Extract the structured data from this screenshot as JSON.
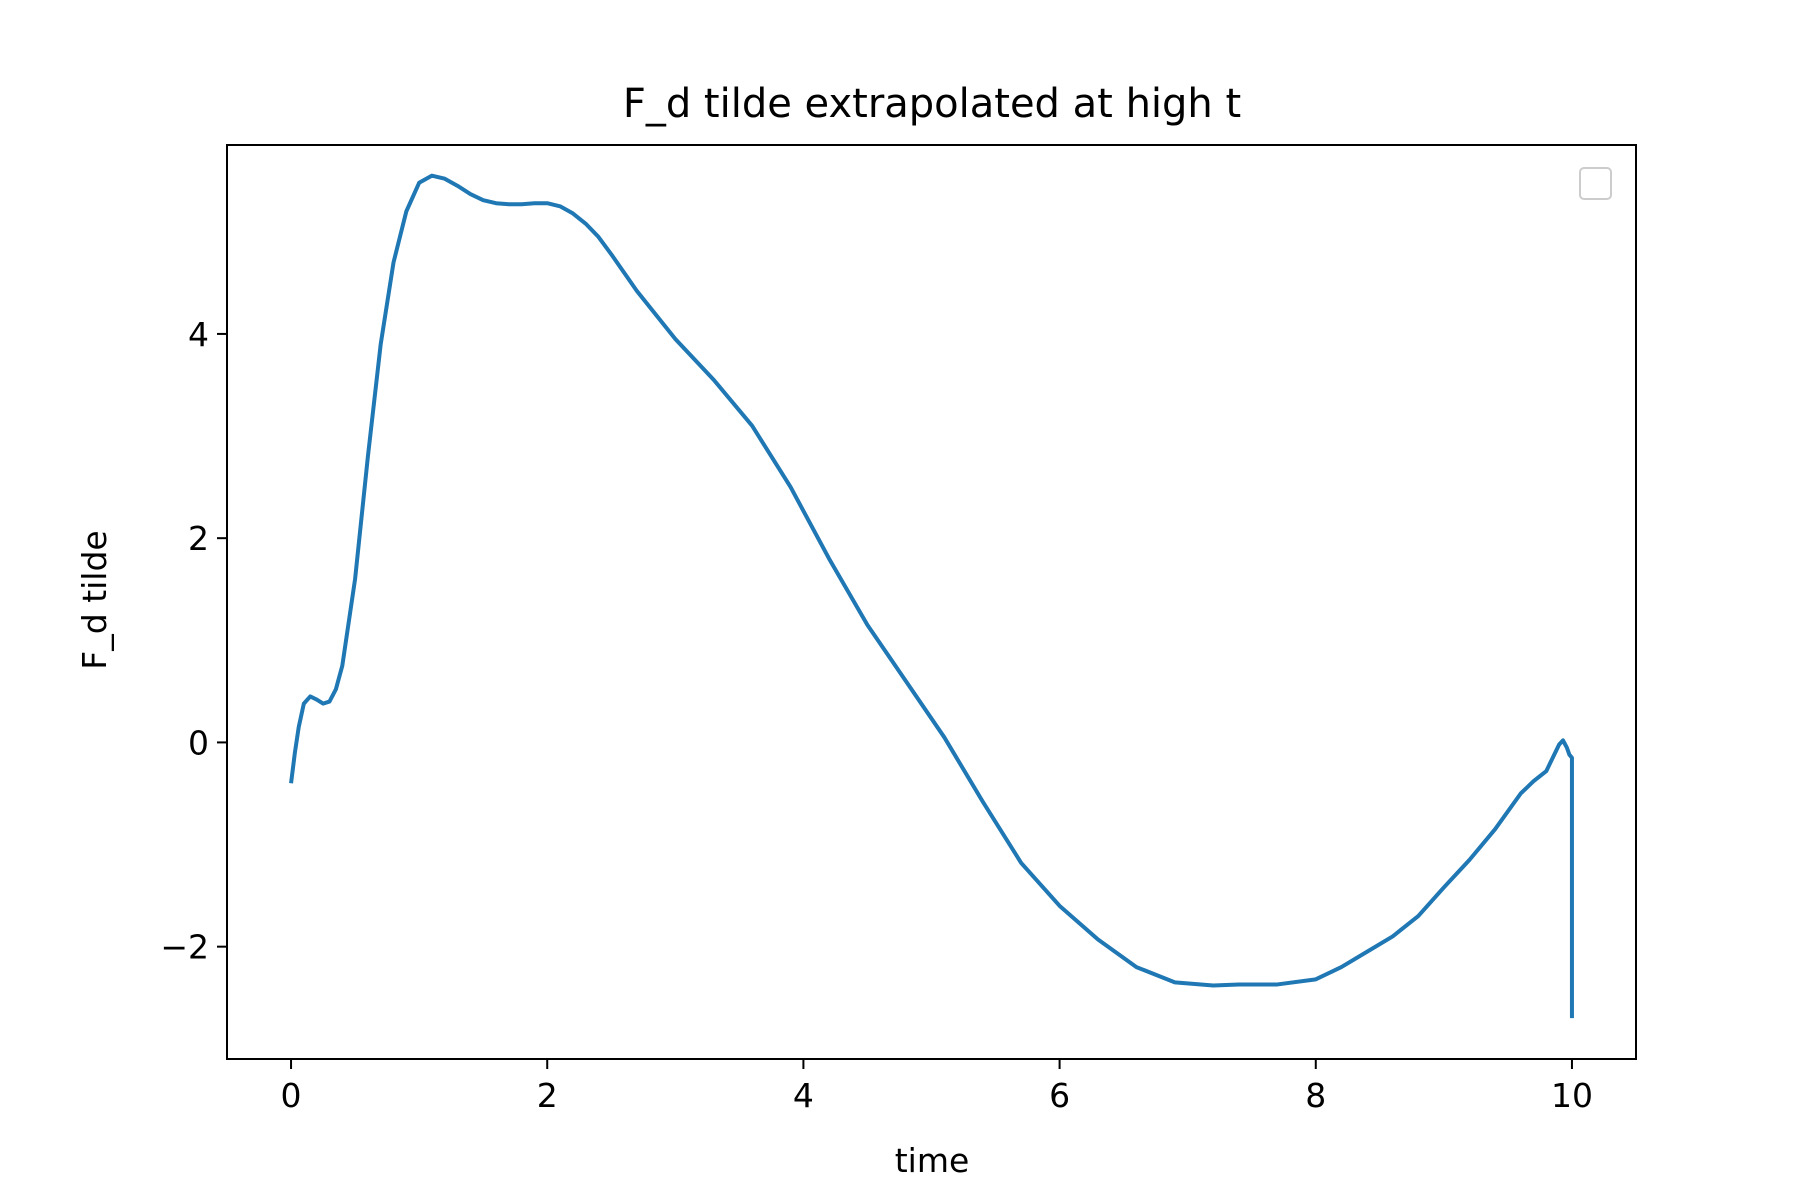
{
  "chart_data": {
    "type": "line",
    "title": "F_d tilde extrapolated at high t",
    "xlabel": "time",
    "ylabel": "F_d tilde",
    "xlim": [
      -0.5,
      10.5
    ],
    "ylim": [
      -3.1,
      5.85
    ],
    "xticks": [
      0,
      2,
      4,
      6,
      8,
      10
    ],
    "yticks": [
      -2,
      0,
      2,
      4
    ],
    "xtick_labels": [
      "0",
      "2",
      "4",
      "6",
      "8",
      "10"
    ],
    "ytick_labels": [
      "−2",
      "0",
      "2",
      "4"
    ],
    "grid": false,
    "legend": {
      "location": "upper right",
      "entries": []
    },
    "series": [
      {
        "color": "#1f77b4",
        "x": [
          0.0,
          0.03,
          0.06,
          0.1,
          0.15,
          0.2,
          0.25,
          0.3,
          0.35,
          0.4,
          0.5,
          0.6,
          0.7,
          0.8,
          0.9,
          1.0,
          1.1,
          1.2,
          1.3,
          1.4,
          1.5,
          1.6,
          1.7,
          1.8,
          1.9,
          2.0,
          2.1,
          2.2,
          2.3,
          2.4,
          2.5,
          2.7,
          3.0,
          3.3,
          3.6,
          3.9,
          4.2,
          4.5,
          4.8,
          5.1,
          5.4,
          5.7,
          6.0,
          6.3,
          6.6,
          6.9,
          7.2,
          7.4,
          7.7,
          8.0,
          8.2,
          8.4,
          8.6,
          8.8,
          9.0,
          9.2,
          9.4,
          9.6,
          9.7,
          9.8,
          9.85,
          9.9,
          9.93,
          9.96,
          9.98,
          10.0,
          10.0,
          10.0
        ],
        "y": [
          -0.4,
          -0.1,
          0.15,
          0.38,
          0.45,
          0.42,
          0.38,
          0.4,
          0.52,
          0.75,
          1.6,
          2.8,
          3.9,
          4.7,
          5.2,
          5.48,
          5.55,
          5.52,
          5.45,
          5.37,
          5.31,
          5.28,
          5.27,
          5.27,
          5.28,
          5.28,
          5.25,
          5.18,
          5.08,
          4.95,
          4.78,
          4.42,
          3.95,
          3.55,
          3.1,
          2.5,
          1.8,
          1.15,
          0.6,
          0.05,
          -0.58,
          -1.18,
          -1.6,
          -1.93,
          -2.2,
          -2.35,
          -2.38,
          -2.37,
          -2.37,
          -2.32,
          -2.2,
          -2.05,
          -1.9,
          -1.7,
          -1.42,
          -1.15,
          -0.85,
          -0.5,
          -0.38,
          -0.28,
          -0.15,
          -0.02,
          0.02,
          -0.05,
          -0.12,
          -0.15,
          -1.5,
          -2.7
        ]
      }
    ]
  }
}
